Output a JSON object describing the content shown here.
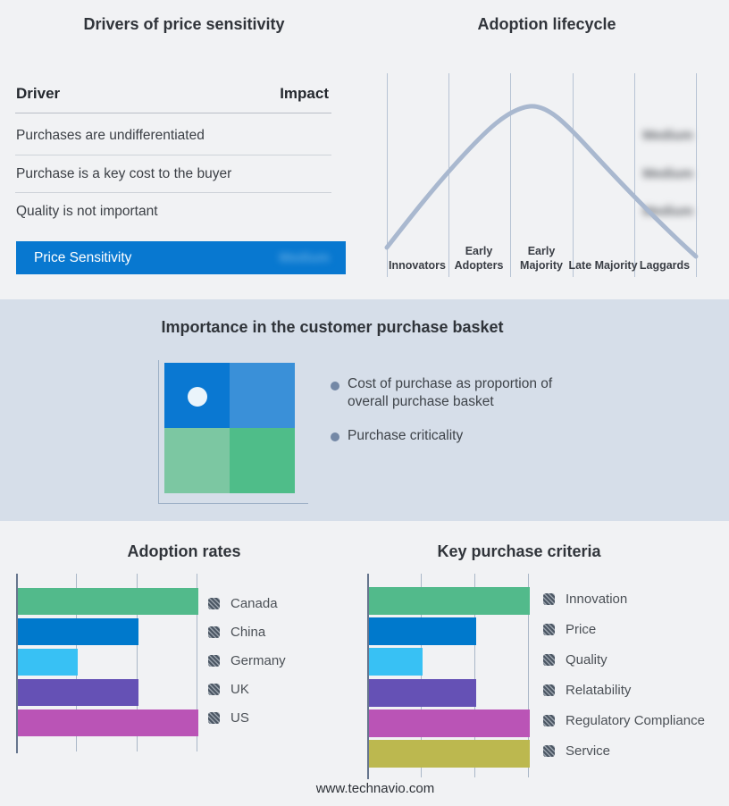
{
  "drivers_panel": {
    "title": "Drivers of price sensitivity",
    "columns": {
      "driver": "Driver",
      "impact": "Impact"
    },
    "rows": [
      {
        "driver": "Purchases are undifferentiated",
        "impact": "Medium",
        "impact_blurred": true
      },
      {
        "driver": "Purchase is a key cost to the buyer",
        "impact": "Medium",
        "impact_blurred": true
      },
      {
        "driver": "Quality is not important",
        "impact": "Medium",
        "impact_blurred": true
      }
    ],
    "highlight_row": {
      "label": "Price Sensitivity",
      "impact": "Medium",
      "impact_blurred": true,
      "bg_color": "#0878d0"
    }
  },
  "basket_panel": {
    "title": "Importance in the customer purchase basket",
    "bullets": [
      "Cost of purchase as proportion of overall purchase basket",
      "Purchase criticality"
    ],
    "quadrant_colors": {
      "top_left": "#0a78d2",
      "top_right": "#3a90d8",
      "bottom_left": "#7cc7a2",
      "bottom_right": "#4fbd89"
    },
    "marker": "white dot in top-left quadrant"
  },
  "footer_text": "www.technavio.com",
  "accent_colors": {
    "band_background": "#d6dee9",
    "page_background": "#f1f2f4",
    "highlight_blue": "#0878d0",
    "curve_gray_blue": "#a9b8cf"
  },
  "chart_data": [
    {
      "type": "bar",
      "title": "Adoption rates",
      "orientation": "horizontal",
      "categories": [
        "Canada",
        "China",
        "Germany",
        "UK",
        "US"
      ],
      "values": [
        3,
        2,
        1,
        2,
        3
      ],
      "colors": [
        "#52ba8b",
        "#0079cc",
        "#38c1f4",
        "#6551b5",
        "#ba54b6"
      ],
      "xlim": [
        0,
        3
      ],
      "gridlines": [
        1,
        2,
        3
      ],
      "grid": true,
      "legend_position": "right",
      "value_labels_shown": false
    },
    {
      "type": "bar",
      "title": "Key purchase criteria",
      "orientation": "horizontal",
      "categories": [
        "Innovation",
        "Price",
        "Quality",
        "Relatability",
        "Regulatory Compliance",
        "Service"
      ],
      "values": [
        3,
        2,
        1,
        2,
        3,
        3
      ],
      "colors": [
        "#52ba8b",
        "#0079cc",
        "#38c1f4",
        "#6551b5",
        "#ba54b6",
        "#bcb84f"
      ],
      "xlim": [
        0,
        3
      ],
      "gridlines": [
        1,
        2,
        3
      ],
      "grid": true,
      "legend_position": "right",
      "value_labels_shown": false
    },
    {
      "type": "line",
      "title": "Adoption lifecycle",
      "categories": [
        "Innovators",
        "Early Adopters",
        "Early Majority",
        "Late Majority",
        "Laggards"
      ],
      "shape": "bell curve",
      "peak_stage": "Early Majority",
      "points_norm": [
        [
          0.0,
          0.06
        ],
        [
          0.2,
          0.57
        ],
        [
          0.41,
          0.94
        ],
        [
          0.48,
          1.0
        ],
        [
          0.6,
          0.85
        ],
        [
          0.8,
          0.44
        ],
        [
          1.0,
          0.0
        ]
      ],
      "gridlines_vertical": 6,
      "legend_position": "none"
    }
  ]
}
